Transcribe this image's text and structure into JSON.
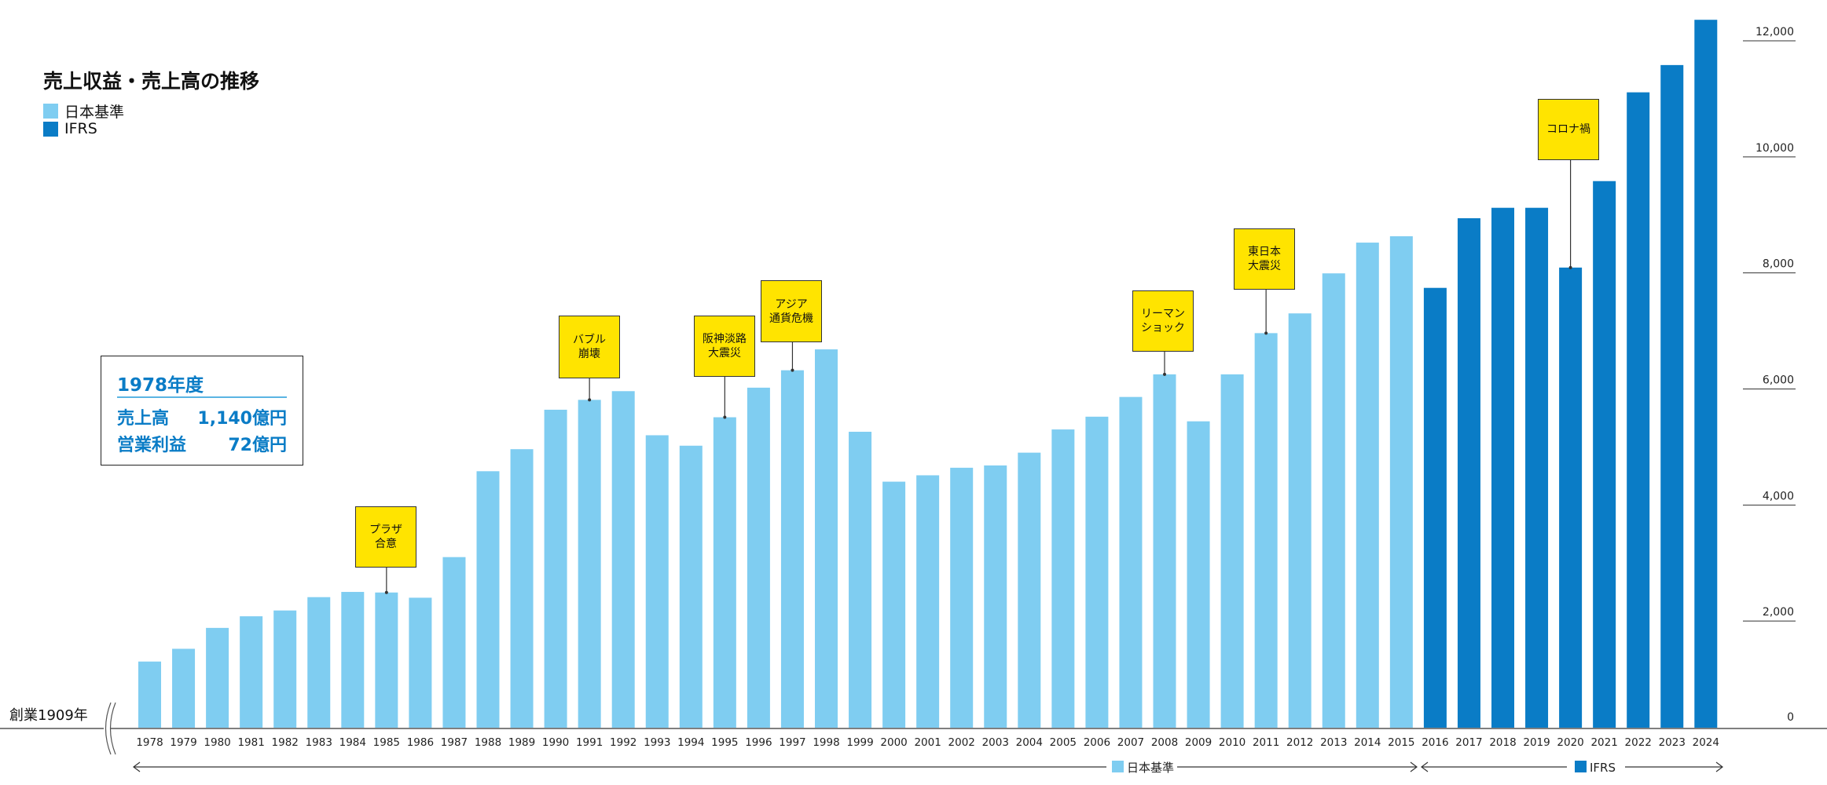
{
  "title": "売上収益・売上高の推移",
  "legend": [
    {
      "label": "日本基準",
      "color": "#7fcdf1"
    },
    {
      "label": "IFRS",
      "color": "#0a7cc6"
    }
  ],
  "info_box": {
    "heading": "1978年度",
    "rows": [
      {
        "label": "売上高",
        "value": "1,140億円"
      },
      {
        "label": "営業利益",
        "value": "72億円"
      }
    ]
  },
  "founded_label": "創業1909年",
  "range_labels": {
    "japan": "日本基準",
    "ifrs": "IFRS"
  },
  "chart_data": {
    "type": "bar",
    "title": "売上収益・売上高の推移",
    "categories": [
      "1978",
      "1979",
      "1980",
      "1981",
      "1982",
      "1983",
      "1984",
      "1985",
      "1986",
      "1987",
      "1988",
      "1989",
      "1990",
      "1991",
      "1992",
      "1993",
      "1994",
      "1995",
      "1996",
      "1997",
      "1998",
      "1999",
      "2000",
      "2001",
      "2002",
      "2003",
      "2004",
      "2005",
      "2006",
      "2007",
      "2008",
      "2009",
      "2010",
      "2011",
      "2012",
      "2013",
      "2014",
      "2015",
      "2016",
      "2017",
      "2018",
      "2019",
      "2020",
      "2021",
      "2022",
      "2023",
      "2024"
    ],
    "series": [
      {
        "name": "日本基準",
        "color": "#7fcdf1",
        "values": [
          1140,
          1360,
          1720,
          1920,
          2020,
          2250,
          2340,
          2330,
          2240,
          2940,
          4420,
          4800,
          5480,
          5650,
          5800,
          5040,
          4860,
          5350,
          5860,
          6160,
          6520,
          5100,
          4240,
          4350,
          4480,
          4520,
          4740,
          5140,
          5360,
          5700,
          6090,
          5280,
          6090,
          6800,
          7140,
          7830,
          8360,
          8470,
          null,
          null,
          null,
          null,
          null,
          null,
          null,
          null,
          null
        ]
      },
      {
        "name": "IFRS",
        "color": "#0a7cc6",
        "values": [
          null,
          null,
          null,
          null,
          null,
          null,
          null,
          null,
          null,
          null,
          null,
          null,
          null,
          null,
          null,
          null,
          null,
          null,
          null,
          null,
          null,
          null,
          null,
          null,
          null,
          null,
          null,
          null,
          null,
          null,
          null,
          null,
          null,
          null,
          null,
          null,
          null,
          null,
          7580,
          8780,
          8960,
          8960,
          7930,
          9420,
          10950,
          11420,
          12200
        ]
      }
    ],
    "ylim": [
      0,
      12000
    ],
    "yticks": [
      "0",
      "2,000",
      "4,000",
      "6,000",
      "8,000",
      "10,000",
      "12,000"
    ],
    "ytick_values": [
      0,
      2000,
      4000,
      6000,
      8000,
      10000,
      12000
    ],
    "annotations": [
      {
        "year": "1985",
        "text": "プラザ\n合意"
      },
      {
        "year": "1991",
        "text": "バブル\n崩壊"
      },
      {
        "year": "1995",
        "text": "阪神淡路\n大震災"
      },
      {
        "year": "1997",
        "text": "アジア\n通貨危機"
      },
      {
        "year": "2008",
        "text": "リーマン\nショック"
      },
      {
        "year": "2011",
        "text": "東日本\n大震災"
      },
      {
        "year": "2020",
        "text": "コロナ禍"
      }
    ],
    "grid": false,
    "legend_position": "top-left"
  }
}
